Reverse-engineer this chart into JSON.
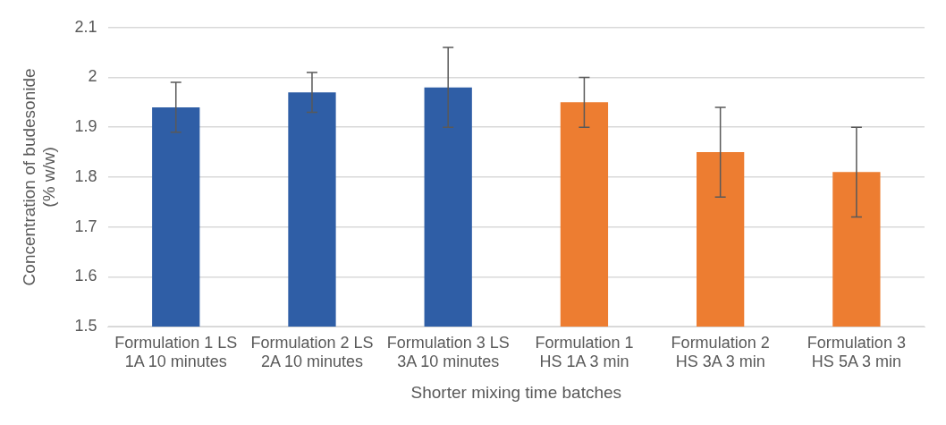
{
  "chart_data": {
    "type": "bar",
    "xlabel": "Shorter mixing time batches",
    "ylabel": "Concentration of budesonide (% w/w)",
    "categories": [
      "Formulation 1 LS 1A 10 minutes",
      "Formulation 2 LS 2A 10 minutes",
      "Formulation 3 LS 3A 10 minutes",
      "Formulation 1 HS 1A 3 min",
      "Formulation 2 HS 3A 3 min",
      "Formulation 3 HS 5A 3 min"
    ],
    "values": [
      1.94,
      1.97,
      1.98,
      1.95,
      1.85,
      1.81
    ],
    "errors": [
      0.05,
      0.04,
      0.08,
      0.05,
      0.09,
      0.09
    ],
    "colors": [
      "#2f5ea6",
      "#2f5ea6",
      "#2f5ea6",
      "#ed7d31",
      "#ed7d31",
      "#ed7d31"
    ],
    "ylim": [
      1.5,
      2.1
    ],
    "yticks": [
      1.5,
      1.6,
      1.7,
      1.8,
      1.9,
      {
        "value": 2,
        "label": "2"
      },
      2.1
    ],
    "grid": "y",
    "legend": false
  }
}
